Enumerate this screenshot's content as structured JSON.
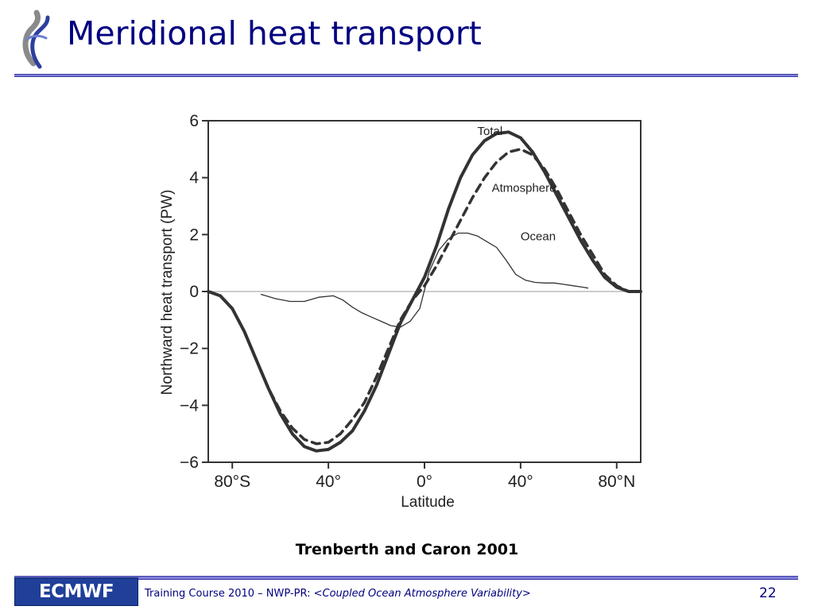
{
  "slide": {
    "title": "Meridional heat transport",
    "caption": "Trenberth and Caron 2001",
    "page_number": "22"
  },
  "footer": {
    "logo_text": "ECMWF",
    "course_prefix": "Training Course 2010 – NWP-PR: <",
    "course_topic": "Coupled Ocean Atmosphere Variability",
    "course_suffix": ">"
  },
  "colors": {
    "title": "#000080",
    "rule": "#7f7fd6",
    "logo_background": "#1f3f99",
    "curve": "#333333"
  },
  "chart_data": {
    "type": "line",
    "title": "",
    "xlabel": "Latitude",
    "ylabel": "Northward heat transport (PW)",
    "xlim": [
      -90,
      90
    ],
    "ylim": [
      -6,
      6
    ],
    "x_ticks": [
      -80,
      -40,
      0,
      40,
      80
    ],
    "x_tick_labels": [
      "80°S",
      "40°",
      "0°",
      "40°",
      "80°N"
    ],
    "y_ticks": [
      -6,
      -4,
      -2,
      0,
      2,
      4,
      6
    ],
    "y_tick_labels": [
      "−6",
      "−4",
      "−2",
      "0",
      "2",
      "4",
      "6"
    ],
    "grid": false,
    "zero_line": true,
    "series": [
      {
        "name": "Total",
        "style": "solid-thick",
        "label_at": [
          22,
          5.5
        ],
        "x": [
          -90,
          -85,
          -80,
          -75,
          -70,
          -65,
          -60,
          -55,
          -50,
          -45,
          -40,
          -35,
          -30,
          -25,
          -20,
          -15,
          -10,
          -5,
          0,
          5,
          10,
          15,
          20,
          25,
          30,
          35,
          40,
          45,
          50,
          55,
          60,
          65,
          70,
          75,
          80,
          85,
          90
        ],
        "values": [
          0,
          -0.15,
          -0.6,
          -1.4,
          -2.4,
          -3.4,
          -4.3,
          -5.0,
          -5.45,
          -5.6,
          -5.55,
          -5.3,
          -4.9,
          -4.2,
          -3.3,
          -2.2,
          -1.1,
          -0.3,
          0.5,
          1.6,
          2.9,
          4.0,
          4.8,
          5.3,
          5.55,
          5.6,
          5.4,
          4.9,
          4.2,
          3.4,
          2.6,
          1.8,
          1.1,
          0.5,
          0.15,
          0,
          0
        ]
      },
      {
        "name": "Atmosphere",
        "style": "dashed-thick",
        "label_at": [
          28,
          3.5
        ],
        "x": [
          -90,
          -85,
          -80,
          -75,
          -70,
          -65,
          -60,
          -55,
          -50,
          -45,
          -40,
          -35,
          -30,
          -25,
          -20,
          -15,
          -10,
          -5,
          0,
          5,
          10,
          15,
          20,
          25,
          30,
          35,
          40,
          45,
          50,
          55,
          60,
          65,
          70,
          75,
          80,
          85,
          90
        ],
        "values": [
          0,
          -0.15,
          -0.6,
          -1.4,
          -2.4,
          -3.4,
          -4.2,
          -4.8,
          -5.2,
          -5.35,
          -5.3,
          -5.0,
          -4.5,
          -3.9,
          -3.0,
          -2.0,
          -1.0,
          -0.3,
          0.2,
          0.9,
          1.7,
          2.5,
          3.3,
          4.0,
          4.55,
          4.9,
          5.0,
          4.8,
          4.3,
          3.6,
          2.8,
          2.0,
          1.3,
          0.6,
          0.2,
          0,
          0
        ]
      },
      {
        "name": "Ocean",
        "style": "solid-thin",
        "label_at": [
          40,
          1.8
        ],
        "x": [
          -68,
          -62,
          -56,
          -50,
          -44,
          -38,
          -34,
          -30,
          -26,
          -22,
          -18,
          -14,
          -10,
          -6,
          -2,
          0,
          2,
          6,
          10,
          14,
          18,
          22,
          26,
          30,
          34,
          38,
          42,
          46,
          50,
          54,
          58,
          62,
          66,
          68
        ],
        "values": [
          -0.1,
          -0.25,
          -0.35,
          -0.35,
          -0.2,
          -0.15,
          -0.3,
          -0.55,
          -0.75,
          -0.9,
          -1.05,
          -1.2,
          -1.25,
          -1.05,
          -0.6,
          0.05,
          0.7,
          1.45,
          1.85,
          2.05,
          2.05,
          1.95,
          1.75,
          1.55,
          1.1,
          0.6,
          0.4,
          0.32,
          0.3,
          0.3,
          0.25,
          0.2,
          0.15,
          0.12
        ]
      }
    ]
  }
}
